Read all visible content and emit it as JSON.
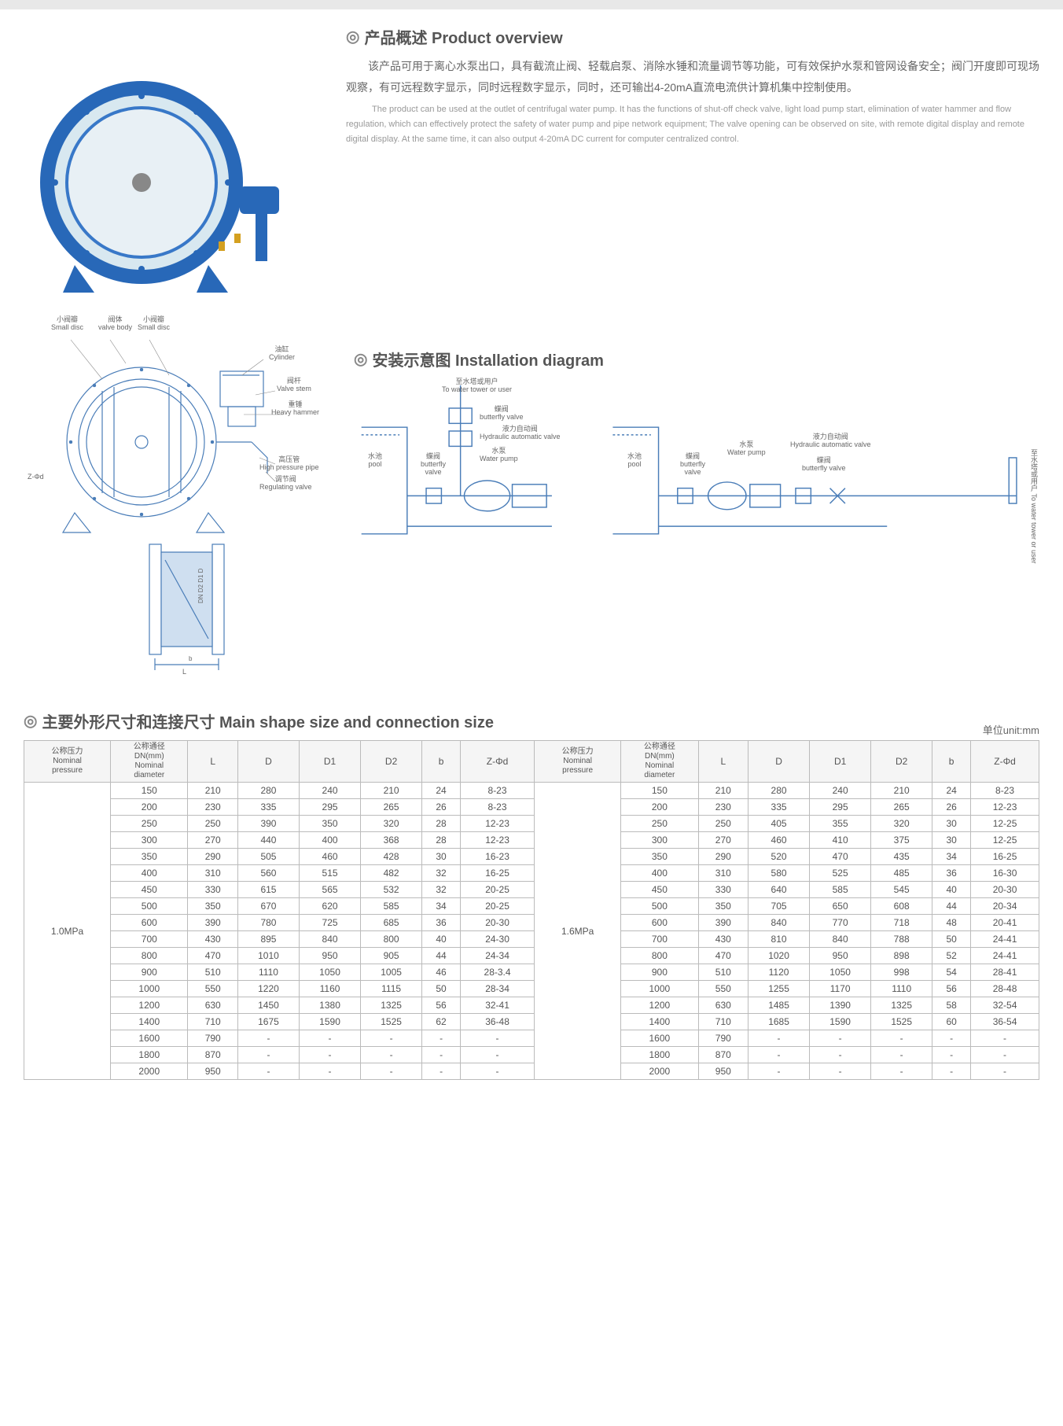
{
  "overview": {
    "heading": "产品概述 Product overview",
    "cn": "该产品可用于离心水泵出口，具有截流止阀、轻载启泵、消除水锤和流量调节等功能，可有效保护水泵和管网设备安全；阀门开度即可现场观察，有可远程数字显示，同时远程数字显示，同时，还可输出4-20mA直流电流供计算机集中控制使用。",
    "en": "The product can be used at the outlet of centrifugal water pump. It has the functions of shut-off check valve, light load pump start, elimination of water hammer and flow regulation, which can effectively protect the safety of water pump and pipe network equipment; The valve opening can be observed on site, with remote digital display and remote digital display. At the same time, it can also output 4-20mA DC current for computer centralized control."
  },
  "valve_labels": {
    "small_disc1": "小阀瓣\nSmall disc",
    "valve_body": "阀体\nvalve body",
    "small_disc2": "小阀瓣\nSmall disc",
    "cylinder": "油缸\nCylinder",
    "valve_stem": "阀杆\nValve stem",
    "heavy_hammer": "重锤\nHeavy hammer",
    "high_pressure": "高压管\nHigh pressure pipe",
    "regulating": "调节阀\nRegulating valve",
    "z_phi_d": "Z-Φd"
  },
  "install": {
    "heading": "安装示意图 Installation diagram",
    "to_tower": "至水塔或用户\nTo water tower or user",
    "pool": "水池\npool",
    "butterfly": "蝶阀\nbutterfly valve",
    "hydraulic": "液力自动阀\nHydraulic automatic valve",
    "water_pump": "水泵\nWater pump",
    "butterfly2": "蝶阀\nbutterfly\nvalve",
    "to_tower_vert": "至水塔或用户\nTo water tower or user"
  },
  "table": {
    "heading": "主要外形尺寸和连接尺寸 Main shape size and connection size",
    "unit": "单位unit:mm",
    "headers": {
      "pressure": "公称压力\nNominal\npressure",
      "diameter": "公称通径\nDN(mm)\nNominal\ndiameter",
      "L": "L",
      "D": "D",
      "D1": "D1",
      "D2": "D2",
      "b": "b",
      "Zphi": "Z-Φd"
    },
    "pressure1": "1.0MPa",
    "pressure2": "1.6MPa",
    "rows1": [
      [
        "150",
        "210",
        "280",
        "240",
        "210",
        "24",
        "8-23"
      ],
      [
        "200",
        "230",
        "335",
        "295",
        "265",
        "26",
        "8-23"
      ],
      [
        "250",
        "250",
        "390",
        "350",
        "320",
        "28",
        "12-23"
      ],
      [
        "300",
        "270",
        "440",
        "400",
        "368",
        "28",
        "12-23"
      ],
      [
        "350",
        "290",
        "505",
        "460",
        "428",
        "30",
        "16-23"
      ],
      [
        "400",
        "310",
        "560",
        "515",
        "482",
        "32",
        "16-25"
      ],
      [
        "450",
        "330",
        "615",
        "565",
        "532",
        "32",
        "20-25"
      ],
      [
        "500",
        "350",
        "670",
        "620",
        "585",
        "34",
        "20-25"
      ],
      [
        "600",
        "390",
        "780",
        "725",
        "685",
        "36",
        "20-30"
      ],
      [
        "700",
        "430",
        "895",
        "840",
        "800",
        "40",
        "24-30"
      ],
      [
        "800",
        "470",
        "1010",
        "950",
        "905",
        "44",
        "24-34"
      ],
      [
        "900",
        "510",
        "1110",
        "1050",
        "1005",
        "46",
        "28-3.4"
      ],
      [
        "1000",
        "550",
        "1220",
        "1160",
        "1115",
        "50",
        "28-34"
      ],
      [
        "1200",
        "630",
        "1450",
        "1380",
        "1325",
        "56",
        "32-41"
      ],
      [
        "1400",
        "710",
        "1675",
        "1590",
        "1525",
        "62",
        "36-48"
      ],
      [
        "1600",
        "790",
        "-",
        "-",
        "-",
        "-",
        "-"
      ],
      [
        "1800",
        "870",
        "-",
        "-",
        "-",
        "-",
        "-"
      ],
      [
        "2000",
        "950",
        "-",
        "-",
        "-",
        "-",
        "-"
      ]
    ],
    "rows2": [
      [
        "150",
        "210",
        "280",
        "240",
        "210",
        "24",
        "8-23"
      ],
      [
        "200",
        "230",
        "335",
        "295",
        "265",
        "26",
        "12-23"
      ],
      [
        "250",
        "250",
        "405",
        "355",
        "320",
        "30",
        "12-25"
      ],
      [
        "300",
        "270",
        "460",
        "410",
        "375",
        "30",
        "12-25"
      ],
      [
        "350",
        "290",
        "520",
        "470",
        "435",
        "34",
        "16-25"
      ],
      [
        "400",
        "310",
        "580",
        "525",
        "485",
        "36",
        "16-30"
      ],
      [
        "450",
        "330",
        "640",
        "585",
        "545",
        "40",
        "20-30"
      ],
      [
        "500",
        "350",
        "705",
        "650",
        "608",
        "44",
        "20-34"
      ],
      [
        "600",
        "390",
        "840",
        "770",
        "718",
        "48",
        "20-41"
      ],
      [
        "700",
        "430",
        "810",
        "840",
        "788",
        "50",
        "24-41"
      ],
      [
        "800",
        "470",
        "1020",
        "950",
        "898",
        "52",
        "24-41"
      ],
      [
        "900",
        "510",
        "1120",
        "1050",
        "998",
        "54",
        "28-41"
      ],
      [
        "1000",
        "550",
        "1255",
        "1170",
        "1110",
        "56",
        "28-48"
      ],
      [
        "1200",
        "630",
        "1485",
        "1390",
        "1325",
        "58",
        "32-54"
      ],
      [
        "1400",
        "710",
        "1685",
        "1590",
        "1525",
        "60",
        "36-54"
      ],
      [
        "1600",
        "790",
        "-",
        "-",
        "-",
        "-",
        "-"
      ],
      [
        "1800",
        "870",
        "-",
        "-",
        "-",
        "-",
        "-"
      ],
      [
        "2000",
        "950",
        "-",
        "-",
        "-",
        "-",
        "-"
      ]
    ]
  },
  "colors": {
    "diagram_stroke": "#4a7db8",
    "text_gray": "#666",
    "border_gray": "#bbb"
  }
}
